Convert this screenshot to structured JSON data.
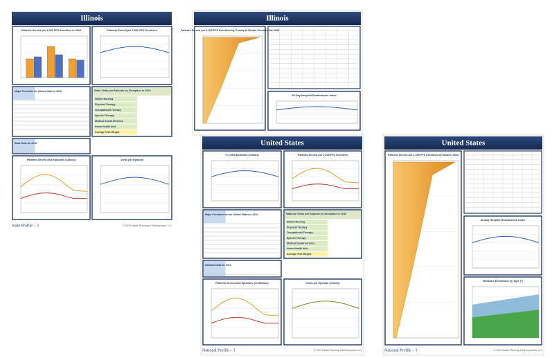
{
  "pages": [
    {
      "title": "Illinois",
      "footer_left": "State Profile – 3",
      "footer_right": "© 2019 Health Planning & Development, LLC",
      "panels": [
        "Patients Served per 1,000 FFS Enrollees in 2016",
        "Patients Served per 1,000 FFS Enrollees",
        "Major Providers for Illinois State in 2016",
        "State Visits per Episode by Discipline in 2016",
        "State Data for 2016",
        "Patients Served and Episodes (Claims)",
        "Visits per Episode"
      ],
      "rows": [
        "Skilled Nursing",
        "Physical Therapy",
        "Occupational Therapy",
        "Speech Therapy",
        "Medical Social Services",
        "Home Health Aide",
        "Average Visit Weight"
      ]
    },
    {
      "title": "Illinois",
      "panels": [
        "Patients Served per 1,000 FFS Enrollees by County in Illinois Counties for 2016",
        "30-Day Hospital Readmission Index"
      ]
    },
    {
      "title": "United States",
      "footer_left": "National Profile – 3",
      "footer_right": "© 2019 Health Planning & Development, LLC",
      "panels": [
        "% LUPA Episodes (Claims)",
        "Patients Served per 1,000 FFS Enrollees",
        "Major Providers for the United States in 2016",
        "National Visits per Episode by Discipline in 2016",
        "National Data for 2016",
        "Patients Served and Episodes (in Millions)",
        "Visits per Episode (Claims)"
      ],
      "rows": [
        "Skilled Nursing",
        "Physical Therapy",
        "Occupational Therapy",
        "Speech Therapy",
        "Medical Social Services",
        "Home Health Aide",
        "Average Visit Weight"
      ]
    },
    {
      "title": "United States",
      "footer_left": "National Profile – 3",
      "footer_right": "© 2019 Health Planning & Development, LLC",
      "panels": [
        "Patients Served per 1,000 FFS Enrollees by State in 2016",
        "30-Day Hospital Readmission Index",
        "Medicare Enrollment by Type (*)"
      ]
    }
  ]
}
